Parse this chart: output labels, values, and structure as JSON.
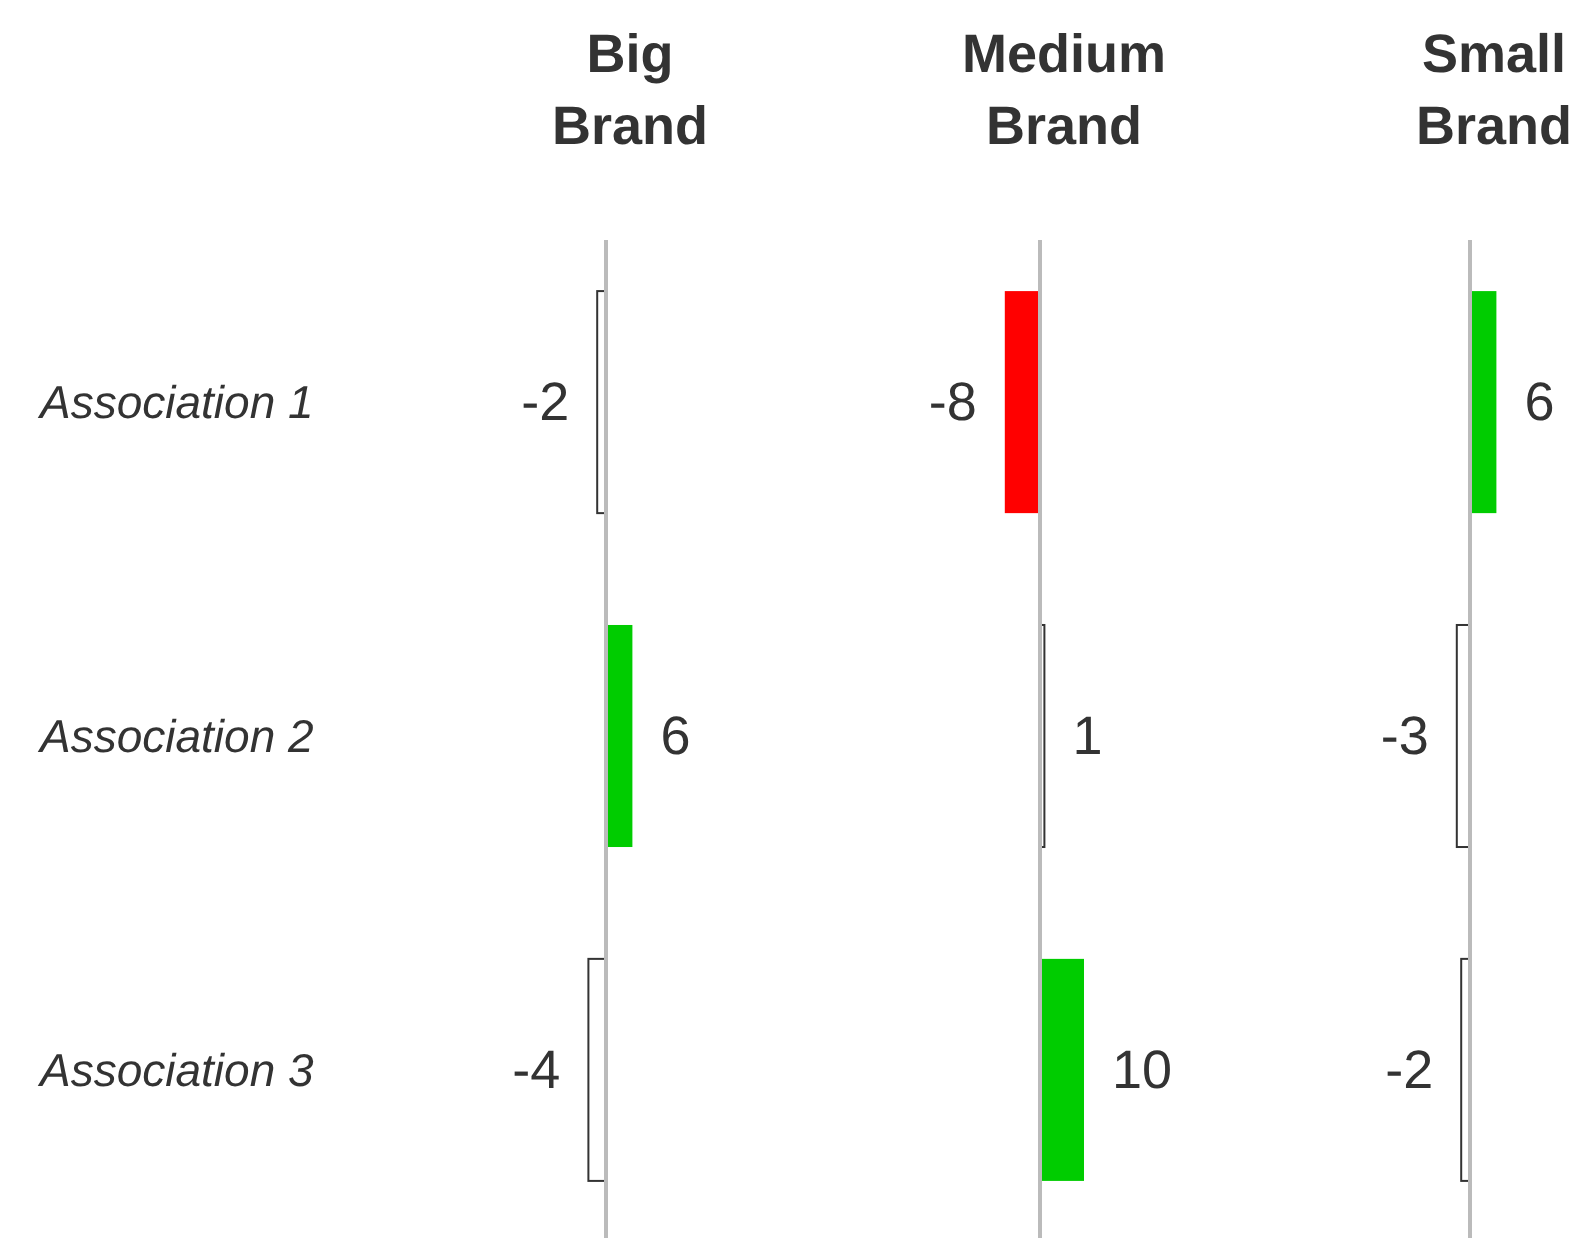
{
  "chart_data": [
    {
      "type": "bar",
      "orientation": "horizontal",
      "title": "Big Brand",
      "categories": [
        "Association 1",
        "Association 2",
        "Association 3"
      ],
      "values": [
        -2,
        6,
        -4
      ],
      "colors": [
        "#ffffff",
        "#00cc00",
        "#ffffff"
      ],
      "data_labels": true,
      "tick_labels": "y"
    },
    {
      "type": "bar",
      "orientation": "horizontal",
      "title": "Medium Brand",
      "categories": [
        null,
        null,
        null
      ],
      "values": [
        -8,
        1,
        10
      ],
      "colors": [
        "#ff0000",
        "#ffffff",
        "#00cc00"
      ],
      "data_labels": true,
      "tick_labels": false
    },
    {
      "type": "bar",
      "orientation": "horizontal",
      "title": "Small Brand",
      "categories": [
        null,
        null,
        null
      ],
      "values": [
        6,
        -3,
        -2
      ],
      "colors": [
        "#00cc00",
        "#ffffff",
        "#ffffff"
      ],
      "data_labels": true,
      "tick_labels": false
    }
  ]
}
